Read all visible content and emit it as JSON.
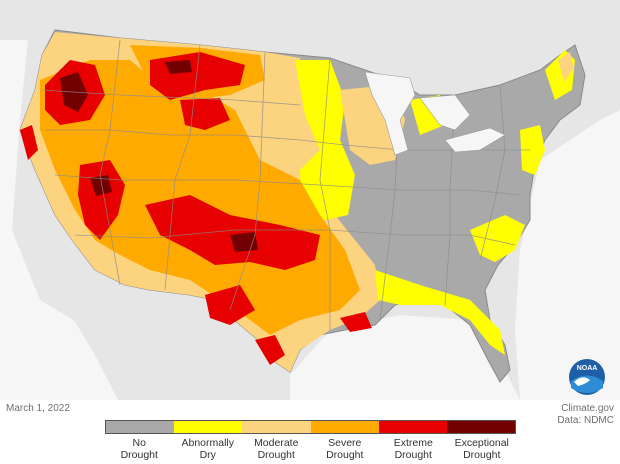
{
  "map": {
    "date": "March 1, 2022",
    "source_site": "Climate.gov",
    "source_data": "Data: NDMC",
    "logo_text": "NOAA",
    "colors": {
      "background_land": "#e4e4e4",
      "water": "#f7f7f7",
      "state_border": "#8c8c8c",
      "no_drought": "#a9a9a9",
      "abnormally_dry": "#ffff00",
      "moderate": "#fcd37f",
      "severe": "#ffaa00",
      "extreme": "#e60000",
      "exceptional": "#730000"
    },
    "legend": [
      {
        "label": "No\nDrought",
        "color": "#a9a9a9"
      },
      {
        "label": "Abnormally\nDry",
        "color": "#ffff00"
      },
      {
        "label": "Moderate\nDrought",
        "color": "#fcd37f"
      },
      {
        "label": "Severe\nDrought",
        "color": "#ffaa00"
      },
      {
        "label": "Extreme\nDrought",
        "color": "#e60000"
      },
      {
        "label": "Exceptional\nDrought",
        "color": "#730000"
      }
    ]
  }
}
